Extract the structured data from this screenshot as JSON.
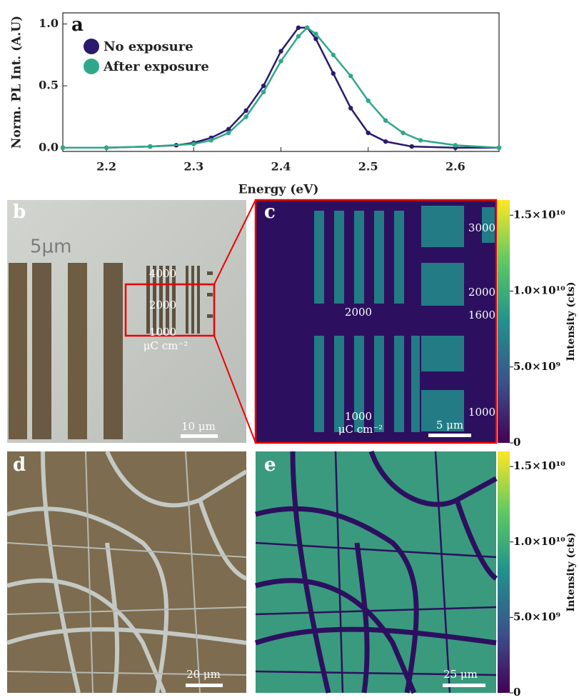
{
  "chart_data": {
    "type": "scatter",
    "panel_label": "a",
    "xlabel": "Energy (eV)",
    "ylabel": "Norm. PL Int. (A.U)",
    "xlim": [
      2.15,
      2.65
    ],
    "ylim": [
      -0.03,
      1.09
    ],
    "xticks": [
      2.2,
      2.3,
      2.4,
      2.5,
      2.6
    ],
    "yticks": [
      {
        "value": 0,
        "label": "0.0"
      },
      0.5,
      {
        "value": 1,
        "label": "1.0"
      }
    ],
    "series": [
      {
        "name": "No exposure",
        "color": "#2b1a6e",
        "x": [
          2.15,
          2.2,
          2.25,
          2.28,
          2.3,
          2.32,
          2.34,
          2.36,
          2.38,
          2.4,
          2.42,
          2.43,
          2.44,
          2.46,
          2.48,
          2.5,
          2.52,
          2.55,
          2.6,
          2.65
        ],
        "values": [
          0,
          0,
          0.01,
          0.02,
          0.04,
          0.08,
          0.15,
          0.3,
          0.5,
          0.78,
          0.97,
          0.97,
          0.88,
          0.6,
          0.32,
          0.12,
          0.05,
          0.01,
          0,
          0
        ]
      },
      {
        "name": "After exposure",
        "color": "#2fa88a",
        "x": [
          2.15,
          2.2,
          2.25,
          2.3,
          2.32,
          2.34,
          2.36,
          2.38,
          2.4,
          2.42,
          2.43,
          2.44,
          2.46,
          2.48,
          2.5,
          2.52,
          2.54,
          2.56,
          2.6,
          2.65
        ],
        "values": [
          0,
          0,
          0.01,
          0.03,
          0.06,
          0.12,
          0.25,
          0.45,
          0.7,
          0.9,
          0.97,
          0.92,
          0.75,
          0.58,
          0.38,
          0.22,
          0.12,
          0.06,
          0.02,
          0
        ]
      }
    ]
  },
  "images": {
    "b": {
      "label": "b",
      "printed": "5μm",
      "doses": [
        "4000",
        "2000",
        "1000"
      ],
      "unit": "μC cm⁻²",
      "scale_bar": "10 μm"
    },
    "c": {
      "label": "c",
      "doses": [
        "2000",
        "1000",
        "3000",
        "2000",
        "1600",
        "1000"
      ],
      "unit": "μC cm⁻²",
      "scale_bar": "5 μm",
      "colorbar": {
        "label": "Intensity (cts)",
        "lim": [
          0,
          16000000000
        ],
        "ticks": [
          0,
          {
            "value": 5000000000,
            "label": "5.0×10⁹"
          },
          {
            "value": 10000000000,
            "label": "1.0×10¹⁰"
          },
          {
            "value": 15000000000,
            "label": "1.5×10¹⁰"
          }
        ]
      }
    },
    "d": {
      "label": "d",
      "scale_bar": "20 μm"
    },
    "e": {
      "label": "e",
      "scale_bar": "25 μm",
      "colorbar": {
        "label": "Intensity (cts)",
        "lim": [
          0,
          16000000000
        ],
        "ticks": [
          0,
          {
            "value": 5000000000,
            "label": "5.0×10⁹"
          },
          {
            "value": 10000000000,
            "label": "1.0×10¹⁰"
          },
          {
            "value": 15000000000,
            "label": "1.5×10¹⁰"
          }
        ]
      }
    }
  }
}
